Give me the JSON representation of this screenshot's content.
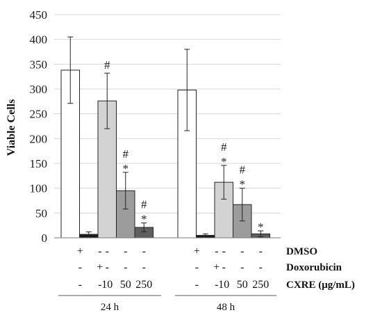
{
  "chart_data": {
    "type": "bar",
    "ylabel": "Viable Cells",
    "xlabel": "",
    "ylim": [
      0,
      450
    ],
    "yticks": [
      "0",
      "50",
      "100",
      "150",
      "200",
      "250",
      "300",
      "350",
      "400",
      "450"
    ],
    "grid": true,
    "groups": [
      {
        "name": "24 h",
        "bars": [
          {
            "value": 338,
            "error": 67,
            "fill": "#ffffff",
            "marks": ""
          },
          {
            "value": 7,
            "error": 5,
            "fill": "#1c1c1c",
            "marks": ""
          },
          {
            "value": 276,
            "error": 56,
            "fill": "#d3d3d3",
            "marks": "#"
          },
          {
            "value": 95,
            "error": 37,
            "fill": "#9c9c9c",
            "marks": "#*"
          },
          {
            "value": 21,
            "error": 9,
            "fill": "#5f5f5f",
            "marks": "#*"
          }
        ]
      },
      {
        "name": "48 h",
        "bars": [
          {
            "value": 298,
            "error": 82,
            "fill": "#ffffff",
            "marks": ""
          },
          {
            "value": 5,
            "error": 3,
            "fill": "#1c1c1c",
            "marks": ""
          },
          {
            "value": 112,
            "error": 34,
            "fill": "#d3d3d3",
            "marks": "#*"
          },
          {
            "value": 67,
            "error": 33,
            "fill": "#9c9c9c",
            "marks": "#*"
          },
          {
            "value": 8,
            "error": 6,
            "fill": "#5f5f5f",
            "marks": "*"
          }
        ]
      }
    ],
    "condition_rows": [
      {
        "label": "DMSO",
        "values": [
          "+",
          "-",
          "-",
          "-",
          "-",
          "+",
          "-",
          "-",
          "-",
          "-"
        ]
      },
      {
        "label": "Doxorubicin",
        "values": [
          "-",
          "+",
          "-",
          "-",
          "-",
          "-",
          "+",
          "-",
          "-",
          "-"
        ]
      },
      {
        "label": "CXRE (μg/mL)",
        "values": [
          "-",
          "-",
          "10",
          "50",
          "250",
          "-",
          "-",
          "10",
          "50",
          "250"
        ]
      }
    ]
  }
}
